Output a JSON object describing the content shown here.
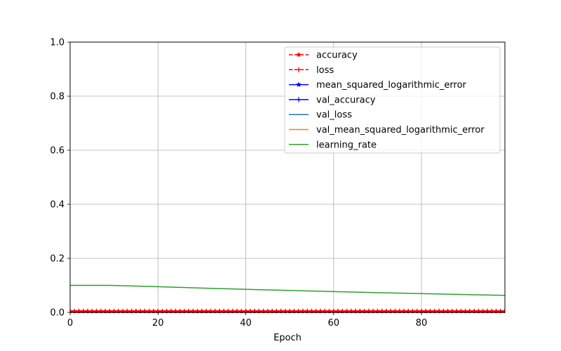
{
  "chart_data": {
    "type": "line",
    "title": "",
    "xlabel": "Epoch",
    "ylabel": "",
    "xlim": [
      0,
      99
    ],
    "ylim": [
      0,
      1
    ],
    "x_ticks": [
      0,
      20,
      40,
      60,
      80
    ],
    "y_ticks": [
      0.0,
      0.2,
      0.4,
      0.6,
      0.8,
      1.0
    ],
    "x_tick_labels": [
      "0",
      "20",
      "40",
      "60",
      "80"
    ],
    "y_tick_labels": [
      "0.0",
      "0.2",
      "0.4",
      "0.6",
      "0.8",
      "1.0"
    ],
    "grid": true,
    "legend_position": "top-right",
    "series": [
      {
        "name": "accuracy",
        "color": "#ff0000",
        "linestyle": "dashed",
        "marker": "star",
        "values_constant": 0.004
      },
      {
        "name": "loss",
        "color": "#ff0000",
        "linestyle": "dashed",
        "marker": "plus",
        "values_constant": 0.004
      },
      {
        "name": "mean_squared_logarithmic_error",
        "color": "#0000ff",
        "linestyle": "solid",
        "marker": "star",
        "values_constant": 0.001
      },
      {
        "name": "val_accuracy",
        "color": "#0000ff",
        "linestyle": "solid",
        "marker": "plus",
        "values_constant": 0.001
      },
      {
        "name": "val_loss",
        "color": "#1f77b4",
        "linestyle": "solid",
        "marker": "none",
        "values_constant": 0.001
      },
      {
        "name": "val_mean_squared_logarithmic_error",
        "color": "#ff7f0e",
        "linestyle": "solid",
        "marker": "none",
        "values_constant": 0.001
      },
      {
        "name": "learning_rate",
        "color": "#2ca02c",
        "linestyle": "solid",
        "marker": "none",
        "points": [
          [
            0,
            0.1
          ],
          [
            9,
            0.1
          ],
          [
            20,
            0.095
          ],
          [
            30,
            0.09
          ],
          [
            40,
            0.0855
          ],
          [
            50,
            0.081
          ],
          [
            60,
            0.077
          ],
          [
            70,
            0.073
          ],
          [
            80,
            0.0695
          ],
          [
            90,
            0.066
          ],
          [
            99,
            0.063
          ]
        ]
      }
    ]
  }
}
